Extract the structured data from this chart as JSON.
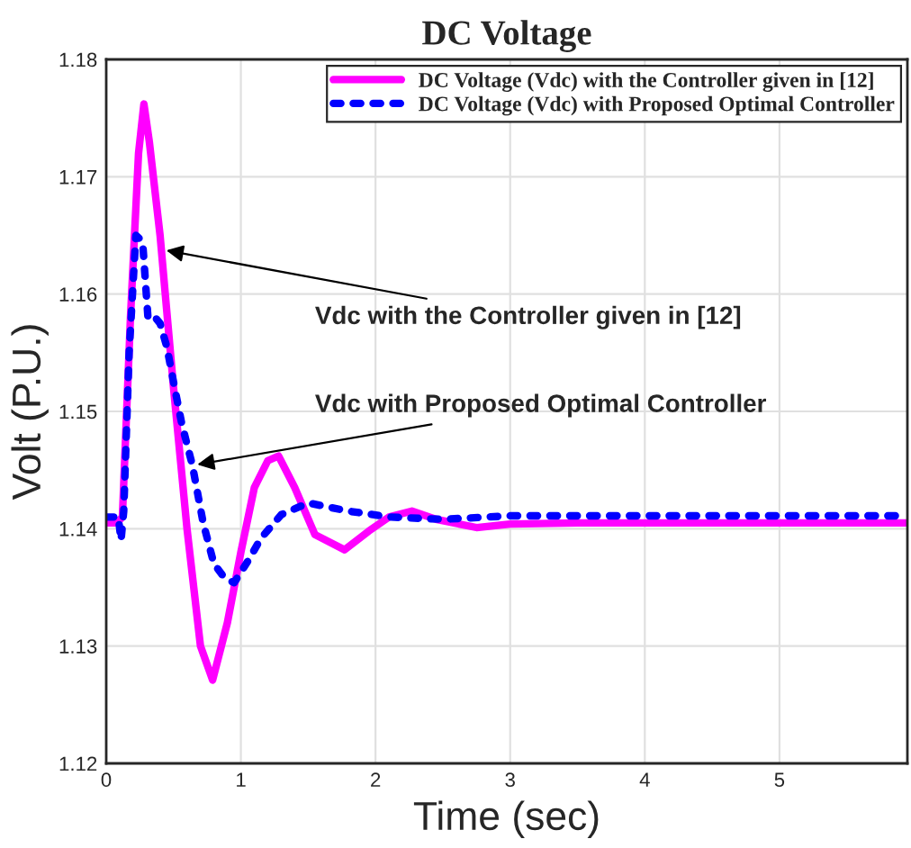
{
  "chart_data": {
    "type": "line",
    "title": "DC Voltage",
    "xlabel": "Time (sec)",
    "ylabel": "Volt (P.U.)",
    "xlim": [
      0,
      5.95
    ],
    "xticks": [
      0,
      1,
      2,
      3,
      4,
      5
    ],
    "ylim": [
      1.12,
      1.18
    ],
    "yticks": [
      1.12,
      1.13,
      1.14,
      1.15,
      1.16,
      1.17,
      1.18
    ],
    "grid": true,
    "legend": "top right",
    "series": [
      {
        "name": "DC Voltage (Vdc) with the Controller given in [12]",
        "color": "#ff00ff",
        "line_style": "solid",
        "x": [
          0,
          0.08,
          0.12,
          0.18,
          0.24,
          0.28,
          0.32,
          0.4,
          0.5,
          0.6,
          0.7,
          0.79,
          0.9,
          1.0,
          1.1,
          1.2,
          1.28,
          1.4,
          1.55,
          1.77,
          1.95,
          2.1,
          2.27,
          2.45,
          2.75,
          3.0,
          3.5,
          5.95
        ],
        "values": [
          1.1405,
          1.1405,
          1.141,
          1.158,
          1.172,
          1.1762,
          1.173,
          1.165,
          1.152,
          1.14,
          1.13,
          1.1271,
          1.132,
          1.138,
          1.1435,
          1.1458,
          1.1462,
          1.1435,
          1.1395,
          1.1382,
          1.1398,
          1.141,
          1.1415,
          1.1408,
          1.1401,
          1.1404,
          1.1405,
          1.1405
        ]
      },
      {
        "name": "DC Voltage (Vdc) with Proposed Optimal Controller",
        "color": "#0000ff",
        "line_style": "dotted",
        "x": [
          0,
          0.09,
          0.11,
          0.13,
          0.17,
          0.22,
          0.27,
          0.31,
          0.35,
          0.4,
          0.45,
          0.5,
          0.56,
          0.64,
          0.72,
          0.8,
          0.88,
          0.95,
          1.05,
          1.15,
          1.3,
          1.5,
          1.8,
          2.1,
          2.5,
          3.0,
          5.95
        ],
        "values": [
          1.141,
          1.141,
          1.139,
          1.1415,
          1.155,
          1.165,
          1.1645,
          1.158,
          1.1582,
          1.1575,
          1.1555,
          1.1525,
          1.149,
          1.1454,
          1.1405,
          1.137,
          1.1358,
          1.1354,
          1.1372,
          1.1392,
          1.1412,
          1.1422,
          1.1415,
          1.141,
          1.1408,
          1.1411,
          1.1411
        ]
      }
    ],
    "annotations": [
      {
        "text": "Vdc with the Controller given in [12]",
        "x": 0.41,
        "y": 1.1638
      },
      {
        "text": "Vdc with Proposed Optimal Controller",
        "x": 0.64,
        "y": 1.1454
      }
    ]
  }
}
